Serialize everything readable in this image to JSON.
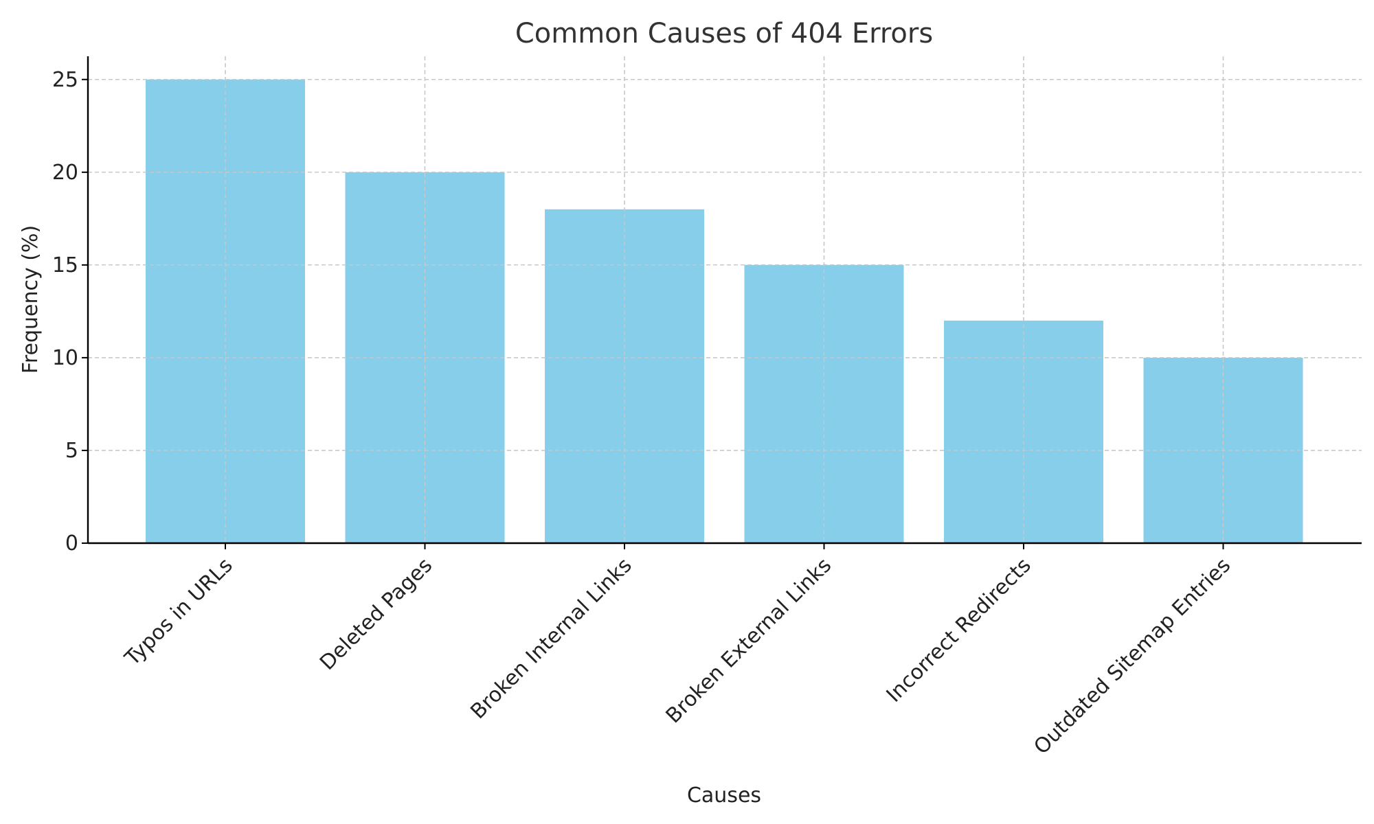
{
  "chart_data": {
    "type": "bar",
    "title": "Common Causes of 404 Errors",
    "xlabel": "Causes",
    "ylabel": "Frequency (%)",
    "categories": [
      "Typos in URLs",
      "Deleted Pages",
      "Broken Internal Links",
      "Broken External Links",
      "Incorrect Redirects",
      "Outdated Sitemap Entries"
    ],
    "values": [
      25,
      20,
      18,
      15,
      12,
      10
    ],
    "ylim": [
      0,
      26.25
    ],
    "yticks": [
      0,
      5,
      10,
      15,
      20,
      25
    ],
    "grid": true,
    "colors": {
      "bar": "#87ceeb",
      "axis": "#000000",
      "grid": "#c8c8c8",
      "title": "#333333"
    }
  }
}
